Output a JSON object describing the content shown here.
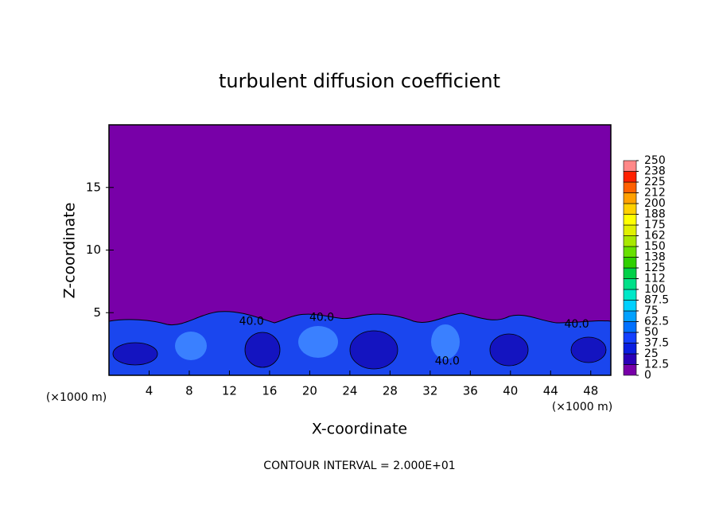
{
  "chart_data": {
    "type": "contour",
    "title": "turbulent diffusion coefficient",
    "x_label": "X-coordinate",
    "y_label": "Z-coordinate",
    "x_unit": "(×1000 m)",
    "y_unit": "(×1000 m)",
    "footer": "CONTOUR INTERVAL = 2.000E+01",
    "xlim": [
      0,
      50
    ],
    "ylim": [
      0,
      20
    ],
    "xticks": [
      4,
      8,
      12,
      16,
      20,
      24,
      28,
      32,
      36,
      40,
      44,
      48
    ],
    "yticks": [
      5,
      10,
      15
    ],
    "annotations": [
      {
        "text": "40.0",
        "x": 14.2,
        "y": 4.3
      },
      {
        "text": "40.0",
        "x": 21.2,
        "y": 4.6
      },
      {
        "text": "40.0",
        "x": 33.7,
        "y": 1.1
      },
      {
        "text": "40.0",
        "x": 46.6,
        "y": 4.05
      }
    ],
    "colorbar": {
      "lim": [
        0,
        250
      ],
      "ticks": [
        0,
        12.5,
        25,
        37.5,
        50,
        62.5,
        75,
        87.5,
        100,
        {
          "value": 112.5,
          "label": "112"
        },
        125,
        {
          "value": 137.5,
          "label": "138"
        },
        150,
        {
          "value": 162.5,
          "label": "162"
        },
        175,
        {
          "value": 187.5,
          "label": "188"
        },
        200,
        {
          "value": 212.5,
          "label": "212"
        },
        225,
        {
          "value": 237.5,
          "label": "238"
        },
        250
      ],
      "colors": [
        "#7800a8",
        "#2a00b8",
        "#0a1ee0",
        "#1440ff",
        "#0070ff",
        "#00a0ff",
        "#00d0ff",
        "#00e8c8",
        "#00e088",
        "#00d048",
        "#30d000",
        "#68e000",
        "#a8e800",
        "#e0f000",
        "#ffff00",
        "#ffd000",
        "#ffa000",
        "#ff6000",
        "#ff2000",
        "#ff8888"
      ]
    }
  }
}
